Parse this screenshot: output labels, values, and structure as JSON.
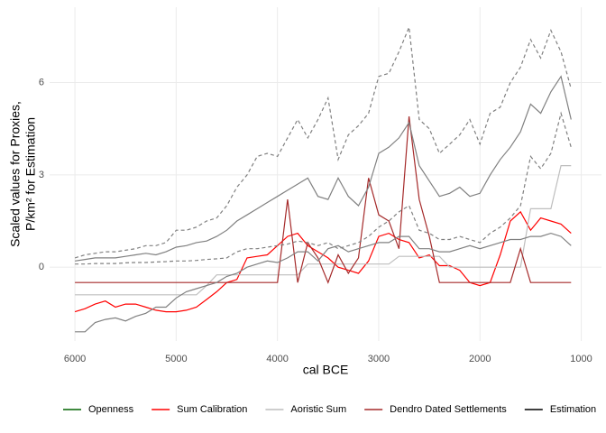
{
  "chart_data": {
    "type": "line",
    "xlabel": "cal BCE",
    "ylabel": [
      "Scaled values for Proxies,",
      "P/km² for Estimation"
    ],
    "x": [
      6000,
      5900,
      5800,
      5700,
      5600,
      5500,
      5400,
      5300,
      5200,
      5100,
      5000,
      4900,
      4800,
      4700,
      4600,
      4500,
      4400,
      4300,
      4200,
      4100,
      4000,
      3900,
      3800,
      3700,
      3600,
      3500,
      3400,
      3300,
      3200,
      3100,
      3000,
      2900,
      2800,
      2700,
      2600,
      2500,
      2400,
      2300,
      2200,
      2100,
      2000,
      1900,
      1800,
      1700,
      1600,
      1500,
      1400,
      1300,
      1200,
      1100
    ],
    "xlim": [
      6250,
      800
    ],
    "xticks": [
      6000,
      5000,
      4000,
      3000,
      2000,
      1000
    ],
    "ylim": [
      -2.4,
      8.45
    ],
    "yticks": [
      0,
      3,
      6
    ],
    "grid": true,
    "series": [
      {
        "name": "Openness",
        "color": "#006400"
      },
      {
        "name": "Sum Calibration",
        "color": "#ff0000",
        "values": [
          -1.45,
          -1.35,
          -1.2,
          -1.1,
          -1.3,
          -1.2,
          -1.2,
          -1.3,
          -1.4,
          -1.45,
          -1.45,
          -1.4,
          -1.3,
          -1.05,
          -0.8,
          -0.5,
          -0.4,
          0.3,
          0.35,
          0.4,
          0.7,
          1.0,
          1.1,
          0.7,
          0.5,
          0.3,
          0.0,
          -0.1,
          -0.2,
          0.2,
          1.0,
          1.1,
          0.9,
          0.8,
          0.3,
          0.4,
          0.05,
          0.05,
          -0.1,
          -0.5,
          -0.6,
          -0.5,
          0.4,
          1.5,
          1.8,
          1.2,
          1.6,
          1.5,
          1.4,
          1.1
        ]
      },
      {
        "name": "Aoristic Sum",
        "color": "#bebebe",
        "values": [
          -0.9,
          -0.9,
          -0.9,
          -0.9,
          -0.9,
          -0.9,
          -0.9,
          -0.9,
          -0.9,
          -0.9,
          -0.9,
          -0.9,
          -0.9,
          -0.6,
          -0.25,
          -0.25,
          -0.25,
          -0.25,
          -0.25,
          -0.25,
          -0.25,
          -0.25,
          -0.25,
          0.1,
          0.1,
          0.1,
          0.1,
          0.1,
          0.1,
          0.1,
          0.1,
          0.1,
          0.35,
          0.35,
          0.35,
          0.35,
          0.35,
          0.0,
          0.0,
          0.0,
          0.0,
          0.0,
          0.0,
          0.0,
          0.0,
          1.9,
          1.9,
          1.9,
          3.3,
          3.3
        ]
      },
      {
        "name": "Dendro Dated Settlements",
        "color": "#a52a2a",
        "values": [
          -0.5,
          -0.5,
          -0.5,
          -0.5,
          -0.5,
          -0.5,
          -0.5,
          -0.5,
          -0.5,
          -0.5,
          -0.5,
          -0.5,
          -0.5,
          -0.5,
          -0.5,
          -0.5,
          -0.5,
          -0.5,
          -0.5,
          -0.5,
          -0.5,
          2.2,
          -0.5,
          0.8,
          0.3,
          -0.5,
          0.4,
          -0.2,
          0.3,
          2.9,
          1.7,
          1.5,
          0.6,
          4.9,
          2.2,
          1.0,
          -0.5,
          -0.5,
          -0.5,
          -0.5,
          -0.5,
          -0.5,
          -0.5,
          -0.5,
          0.6,
          -0.5,
          -0.5,
          -0.5,
          -0.5,
          -0.5
        ]
      },
      {
        "name": "Estimation",
        "color": "#000000",
        "lines": [
          {
            "color": "#808080",
            "dashed": false,
            "values": [
              0.2,
              0.25,
              0.3,
              0.3,
              0.3,
              0.35,
              0.4,
              0.45,
              0.4,
              0.5,
              0.65,
              0.7,
              0.8,
              0.85,
              1.0,
              1.2,
              1.5,
              1.7,
              1.9,
              2.1,
              2.3,
              2.5,
              2.7,
              2.9,
              2.3,
              2.2,
              2.9,
              2.3,
              2.0,
              2.6,
              3.7,
              3.9,
              4.2,
              4.7,
              3.3,
              2.8,
              2.3,
              2.4,
              2.6,
              2.3,
              2.4,
              3.0,
              3.5,
              3.9,
              4.4,
              5.3,
              5.0,
              5.7,
              6.2,
              4.8
            ]
          },
          {
            "color": "#808080",
            "dashed": true,
            "values": [
              0.3,
              0.4,
              0.45,
              0.5,
              0.5,
              0.55,
              0.6,
              0.7,
              0.7,
              0.8,
              1.2,
              1.2,
              1.3,
              1.5,
              1.6,
              2.0,
              2.6,
              3.0,
              3.6,
              3.7,
              3.6,
              4.2,
              4.8,
              4.2,
              4.8,
              5.5,
              3.5,
              4.3,
              4.6,
              5.0,
              6.2,
              6.3,
              7.0,
              7.8,
              4.8,
              4.5,
              3.7,
              4.0,
              4.3,
              4.8,
              4.0,
              5.0,
              5.2,
              6.0,
              6.5,
              7.4,
              6.8,
              7.7,
              7.0,
              5.8
            ]
          },
          {
            "color": "#808080",
            "dashed": false,
            "values": [
              -2.1,
              -2.1,
              -1.8,
              -1.7,
              -1.65,
              -1.75,
              -1.6,
              -1.5,
              -1.3,
              -1.3,
              -1.0,
              -0.8,
              -0.7,
              -0.6,
              -0.5,
              -0.3,
              -0.2,
              0.0,
              0.1,
              0.2,
              0.15,
              0.3,
              0.5,
              0.5,
              0.2,
              0.6,
              0.7,
              0.5,
              0.6,
              0.7,
              0.8,
              0.8,
              1.0,
              1.0,
              0.6,
              0.6,
              0.5,
              0.5,
              0.6,
              0.7,
              0.6,
              0.7,
              0.8,
              0.9,
              0.9,
              1.0,
              1.0,
              1.1,
              1.0,
              0.7
            ]
          },
          {
            "color": "#808080",
            "dashed": true,
            "values": [
              0.1,
              0.1,
              0.12,
              0.12,
              0.12,
              0.14,
              0.15,
              0.15,
              0.17,
              0.18,
              0.2,
              0.2,
              0.22,
              0.25,
              0.27,
              0.3,
              0.5,
              0.6,
              0.6,
              0.65,
              0.7,
              0.75,
              0.85,
              0.8,
              0.7,
              0.8,
              0.6,
              0.7,
              0.8,
              1.0,
              1.3,
              1.5,
              1.8,
              2.0,
              1.2,
              1.1,
              0.9,
              0.9,
              1.0,
              0.9,
              0.8,
              1.1,
              1.3,
              1.6,
              2.0,
              3.6,
              3.2,
              3.7,
              5.0,
              3.9
            ]
          }
        ]
      }
    ]
  }
}
